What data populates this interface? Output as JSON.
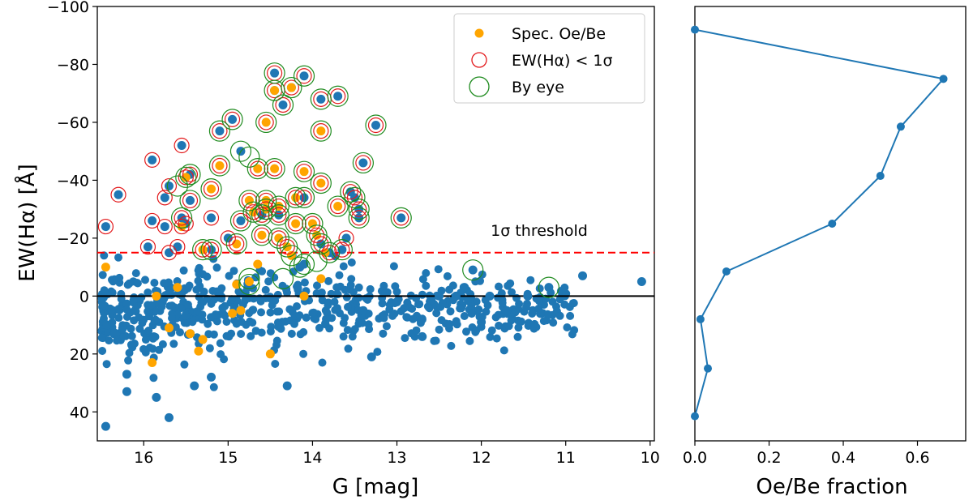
{
  "colors": {
    "all_stars": "#1f77b4",
    "spec_oebe": "#ffa500",
    "ew_ring": "#e31a1c",
    "eye_ring": "#1f8b1f",
    "threshold": "#ff0000",
    "zero_line": "#000000",
    "frac_line": "#1f77b4"
  },
  "chart_data": [
    {
      "type": "scatter",
      "id": "ew-vs-g",
      "xlabel": "G [mag]",
      "ylabel": "EW(Hα) [Å]",
      "xlim": [
        16.55,
        9.95
      ],
      "ylim": [
        50,
        -100
      ],
      "x_inverted": true,
      "y_inverted": true,
      "xticks": [
        16,
        15,
        14,
        13,
        12,
        11,
        10
      ],
      "xtick_labels": [
        "16",
        "15",
        "14",
        "13",
        "12",
        "11",
        "10"
      ],
      "yticks": [
        -100,
        -80,
        -60,
        -40,
        -20,
        0,
        20,
        40
      ],
      "ytick_labels": [
        "−100",
        "−80",
        "−60",
        "−40",
        "−20",
        "0",
        "20",
        "40"
      ],
      "threshold": {
        "value": -15,
        "label": "1σ threshold"
      },
      "zero_line": 0,
      "legend": {
        "position": "top-right",
        "entries": [
          {
            "key": "spec",
            "label": "Spec. Oe/Be"
          },
          {
            "key": "ew",
            "label": "EW(Hα) < 1σ"
          },
          {
            "key": "eye",
            "label": "By eye"
          }
        ]
      },
      "series": [
        {
          "name": "Spec. Oe/Be",
          "points": [
            [
              14.45,
              -71
            ],
            [
              14.55,
              -60
            ],
            [
              14.25,
              -72
            ],
            [
              13.9,
              -57
            ],
            [
              15.1,
              -45
            ],
            [
              14.65,
              -44
            ],
            [
              14.45,
              -44
            ],
            [
              14.1,
              -43
            ],
            [
              15.5,
              -41
            ],
            [
              15.2,
              -37
            ],
            [
              13.9,
              -39
            ],
            [
              14.75,
              -33
            ],
            [
              14.55,
              -33
            ],
            [
              14.4,
              -31
            ],
            [
              14.2,
              -34
            ],
            [
              13.7,
              -31
            ],
            [
              14.55,
              -30
            ],
            [
              14.7,
              -29
            ],
            [
              14.2,
              -25
            ],
            [
              14.0,
              -25
            ],
            [
              15.55,
              -24
            ],
            [
              14.6,
              -21
            ],
            [
              14.4,
              -20
            ],
            [
              13.95,
              -21
            ],
            [
              14.9,
              -18
            ],
            [
              14.3,
              -17
            ],
            [
              15.3,
              -16
            ],
            [
              14.25,
              -14
            ],
            [
              13.85,
              -15
            ],
            [
              16.45,
              -10
            ],
            [
              14.65,
              -11
            ],
            [
              13.9,
              -6
            ],
            [
              14.75,
              -5
            ],
            [
              15.6,
              -3
            ],
            [
              14.9,
              -4
            ],
            [
              14.1,
              0
            ],
            [
              15.85,
              0
            ],
            [
              14.95,
              6
            ],
            [
              14.85,
              5
            ],
            [
              15.7,
              11
            ],
            [
              15.45,
              13
            ],
            [
              15.3,
              15
            ],
            [
              15.35,
              19
            ],
            [
              14.5,
              20
            ],
            [
              15.9,
              23
            ]
          ]
        },
        {
          "name": "EW(Hα) < 1σ",
          "points": [
            [
              14.45,
              -77
            ],
            [
              14.1,
              -76
            ],
            [
              14.45,
              -71
            ],
            [
              14.25,
              -72
            ],
            [
              13.7,
              -69
            ],
            [
              13.9,
              -68
            ],
            [
              14.35,
              -66
            ],
            [
              14.55,
              -60
            ],
            [
              14.95,
              -61
            ],
            [
              15.1,
              -57
            ],
            [
              13.9,
              -57
            ],
            [
              13.25,
              -59
            ],
            [
              15.55,
              -52
            ],
            [
              15.9,
              -47
            ],
            [
              15.1,
              -45
            ],
            [
              14.65,
              -44
            ],
            [
              14.45,
              -44
            ],
            [
              14.1,
              -43
            ],
            [
              13.4,
              -46
            ],
            [
              15.45,
              -42
            ],
            [
              15.5,
              -41
            ],
            [
              15.7,
              -38
            ],
            [
              15.2,
              -37
            ],
            [
              13.9,
              -39
            ],
            [
              16.3,
              -35
            ],
            [
              15.75,
              -34
            ],
            [
              15.45,
              -33
            ],
            [
              14.1,
              -34
            ],
            [
              13.55,
              -36
            ],
            [
              13.5,
              -34
            ],
            [
              14.75,
              -33
            ],
            [
              14.55,
              -33
            ],
            [
              14.4,
              -31
            ],
            [
              14.2,
              -34
            ],
            [
              13.7,
              -31
            ],
            [
              13.45,
              -30
            ],
            [
              14.55,
              -30
            ],
            [
              14.7,
              -29
            ],
            [
              15.9,
              -26
            ],
            [
              15.55,
              -27
            ],
            [
              15.2,
              -27
            ],
            [
              14.6,
              -28
            ],
            [
              14.4,
              -28
            ],
            [
              12.95,
              -27
            ],
            [
              13.45,
              -27
            ],
            [
              16.45,
              -24
            ],
            [
              15.75,
              -24
            ],
            [
              15.5,
              -25
            ],
            [
              14.85,
              -26
            ],
            [
              14.2,
              -25
            ],
            [
              14.0,
              -25
            ],
            [
              15.55,
              -24
            ],
            [
              14.6,
              -21
            ],
            [
              14.4,
              -20
            ],
            [
              13.95,
              -21
            ],
            [
              13.6,
              -20
            ],
            [
              15.95,
              -17
            ],
            [
              15.7,
              -15
            ],
            [
              15.6,
              -17
            ],
            [
              14.9,
              -18
            ],
            [
              15.0,
              -20
            ],
            [
              14.3,
              -17
            ],
            [
              13.9,
              -18
            ],
            [
              15.3,
              -16
            ],
            [
              15.2,
              -16
            ],
            [
              13.8,
              -15
            ],
            [
              13.65,
              -16
            ]
          ]
        },
        {
          "name": "By eye",
          "points": [
            [
              14.45,
              -77
            ],
            [
              14.1,
              -76
            ],
            [
              14.45,
              -71
            ],
            [
              14.25,
              -72
            ],
            [
              13.7,
              -69
            ],
            [
              13.9,
              -68
            ],
            [
              14.35,
              -66
            ],
            [
              14.55,
              -60
            ],
            [
              14.95,
              -61
            ],
            [
              15.1,
              -57
            ],
            [
              13.9,
              -57
            ],
            [
              13.25,
              -59
            ],
            [
              14.85,
              -50
            ],
            [
              14.75,
              -48
            ],
            [
              15.1,
              -45
            ],
            [
              14.65,
              -44
            ],
            [
              14.45,
              -44
            ],
            [
              14.1,
              -43
            ],
            [
              13.4,
              -46
            ],
            [
              15.45,
              -42
            ],
            [
              15.5,
              -41
            ],
            [
              15.2,
              -37
            ],
            [
              13.9,
              -39
            ],
            [
              15.6,
              -38
            ],
            [
              15.45,
              -33
            ],
            [
              14.1,
              -34
            ],
            [
              13.55,
              -36
            ],
            [
              13.5,
              -34
            ],
            [
              14.75,
              -33
            ],
            [
              14.55,
              -33
            ],
            [
              14.4,
              -31
            ],
            [
              14.2,
              -34
            ],
            [
              13.7,
              -31
            ],
            [
              13.45,
              -30
            ],
            [
              14.55,
              -30
            ],
            [
              14.7,
              -29
            ],
            [
              14.6,
              -28
            ],
            [
              14.4,
              -28
            ],
            [
              12.95,
              -27
            ],
            [
              13.45,
              -27
            ],
            [
              14.85,
              -26
            ],
            [
              15.55,
              -27
            ],
            [
              14.2,
              -25
            ],
            [
              14.0,
              -25
            ],
            [
              14.6,
              -21
            ],
            [
              14.4,
              -20
            ],
            [
              13.95,
              -21
            ],
            [
              14.9,
              -18
            ],
            [
              14.3,
              -17
            ],
            [
              13.9,
              -18
            ],
            [
              13.8,
              -15
            ],
            [
              13.65,
              -16
            ],
            [
              15.3,
              -16
            ],
            [
              15.2,
              -16
            ],
            [
              14.25,
              -14
            ],
            [
              14.1,
              -11
            ],
            [
              13.95,
              -12
            ],
            [
              14.15,
              -10
            ],
            [
              12.1,
              -9
            ],
            [
              14.75,
              -6
            ],
            [
              14.75,
              -4
            ],
            [
              14.35,
              -6
            ],
            [
              11.2,
              -3
            ]
          ]
        },
        {
          "name": "All",
          "points": [
            [
              14.45,
              -77
            ],
            [
              14.1,
              -76
            ],
            [
              14.45,
              -71
            ],
            [
              14.25,
              -72
            ],
            [
              13.7,
              -69
            ],
            [
              13.9,
              -68
            ],
            [
              14.35,
              -66
            ],
            [
              14.95,
              -61
            ],
            [
              15.1,
              -57
            ],
            [
              13.25,
              -59
            ],
            [
              15.55,
              -52
            ],
            [
              14.85,
              -50
            ],
            [
              15.9,
              -47
            ],
            [
              13.4,
              -46
            ],
            [
              15.45,
              -42
            ],
            [
              15.7,
              -38
            ],
            [
              16.3,
              -35
            ],
            [
              15.75,
              -34
            ],
            [
              15.45,
              -33
            ],
            [
              14.1,
              -34
            ],
            [
              13.55,
              -36
            ],
            [
              13.5,
              -34
            ],
            [
              13.45,
              -30
            ],
            [
              15.9,
              -26
            ],
            [
              15.55,
              -27
            ],
            [
              15.2,
              -27
            ],
            [
              14.6,
              -28
            ],
            [
              14.4,
              -28
            ],
            [
              12.95,
              -27
            ],
            [
              13.45,
              -27
            ],
            [
              16.45,
              -24
            ],
            [
              15.75,
              -24
            ],
            [
              15.5,
              -25
            ],
            [
              14.85,
              -26
            ],
            [
              13.6,
              -20
            ],
            [
              15.95,
              -17
            ],
            [
              15.7,
              -15
            ],
            [
              15.6,
              -17
            ],
            [
              15.0,
              -20
            ],
            [
              13.9,
              -18
            ],
            [
              15.2,
              -16
            ],
            [
              13.8,
              -15
            ],
            [
              13.65,
              -16
            ],
            [
              14.1,
              -11
            ],
            [
              14.15,
              -10
            ],
            [
              12.1,
              -9
            ],
            [
              11.2,
              -3
            ],
            [
              10.8,
              -7
            ],
            [
              10.1,
              -5
            ],
            [
              11.45,
              0
            ],
            [
              11.7,
              5
            ],
            [
              12.5,
              0
            ],
            [
              12.2,
              -3
            ],
            [
              13.0,
              2
            ],
            [
              13.4,
              5
            ],
            [
              16.45,
              45
            ],
            [
              15.7,
              42
            ],
            [
              16.2,
              33
            ],
            [
              15.85,
              35
            ],
            [
              16.2,
              27
            ],
            [
              15.4,
              31
            ],
            [
              15.2,
              28
            ],
            [
              14.3,
              31
            ],
            [
              13.3,
              21
            ],
            [
              12.7,
              14
            ],
            [
              12.0,
              9
            ],
            [
              11.3,
              6
            ],
            [
              11.9,
              0
            ],
            [
              12.3,
              0
            ]
          ]
        }
      ],
      "cloud": {
        "description_free": true,
        "n": 620,
        "g_range": [
          16.5,
          10.9
        ],
        "ew_center": 3,
        "ew_spread": 8
      }
    },
    {
      "type": "line",
      "id": "oebe-fraction",
      "xlabel": "Oe/Be fraction",
      "xlim": [
        0,
        0.73
      ],
      "ylim": [
        50,
        -100
      ],
      "xticks": [
        0.0,
        0.2,
        0.4,
        0.6
      ],
      "xtick_labels": [
        "0.0",
        "0.2",
        "0.4",
        "0.6"
      ],
      "points": [
        [
          0.0,
          -92
        ],
        [
          0.67,
          -75
        ],
        [
          0.555,
          -58.5
        ],
        [
          0.5,
          -41.5
        ],
        [
          0.37,
          -25
        ],
        [
          0.085,
          -8.5
        ],
        [
          0.015,
          8
        ],
        [
          0.035,
          25
        ],
        [
          0.0,
          41.5
        ]
      ]
    }
  ]
}
